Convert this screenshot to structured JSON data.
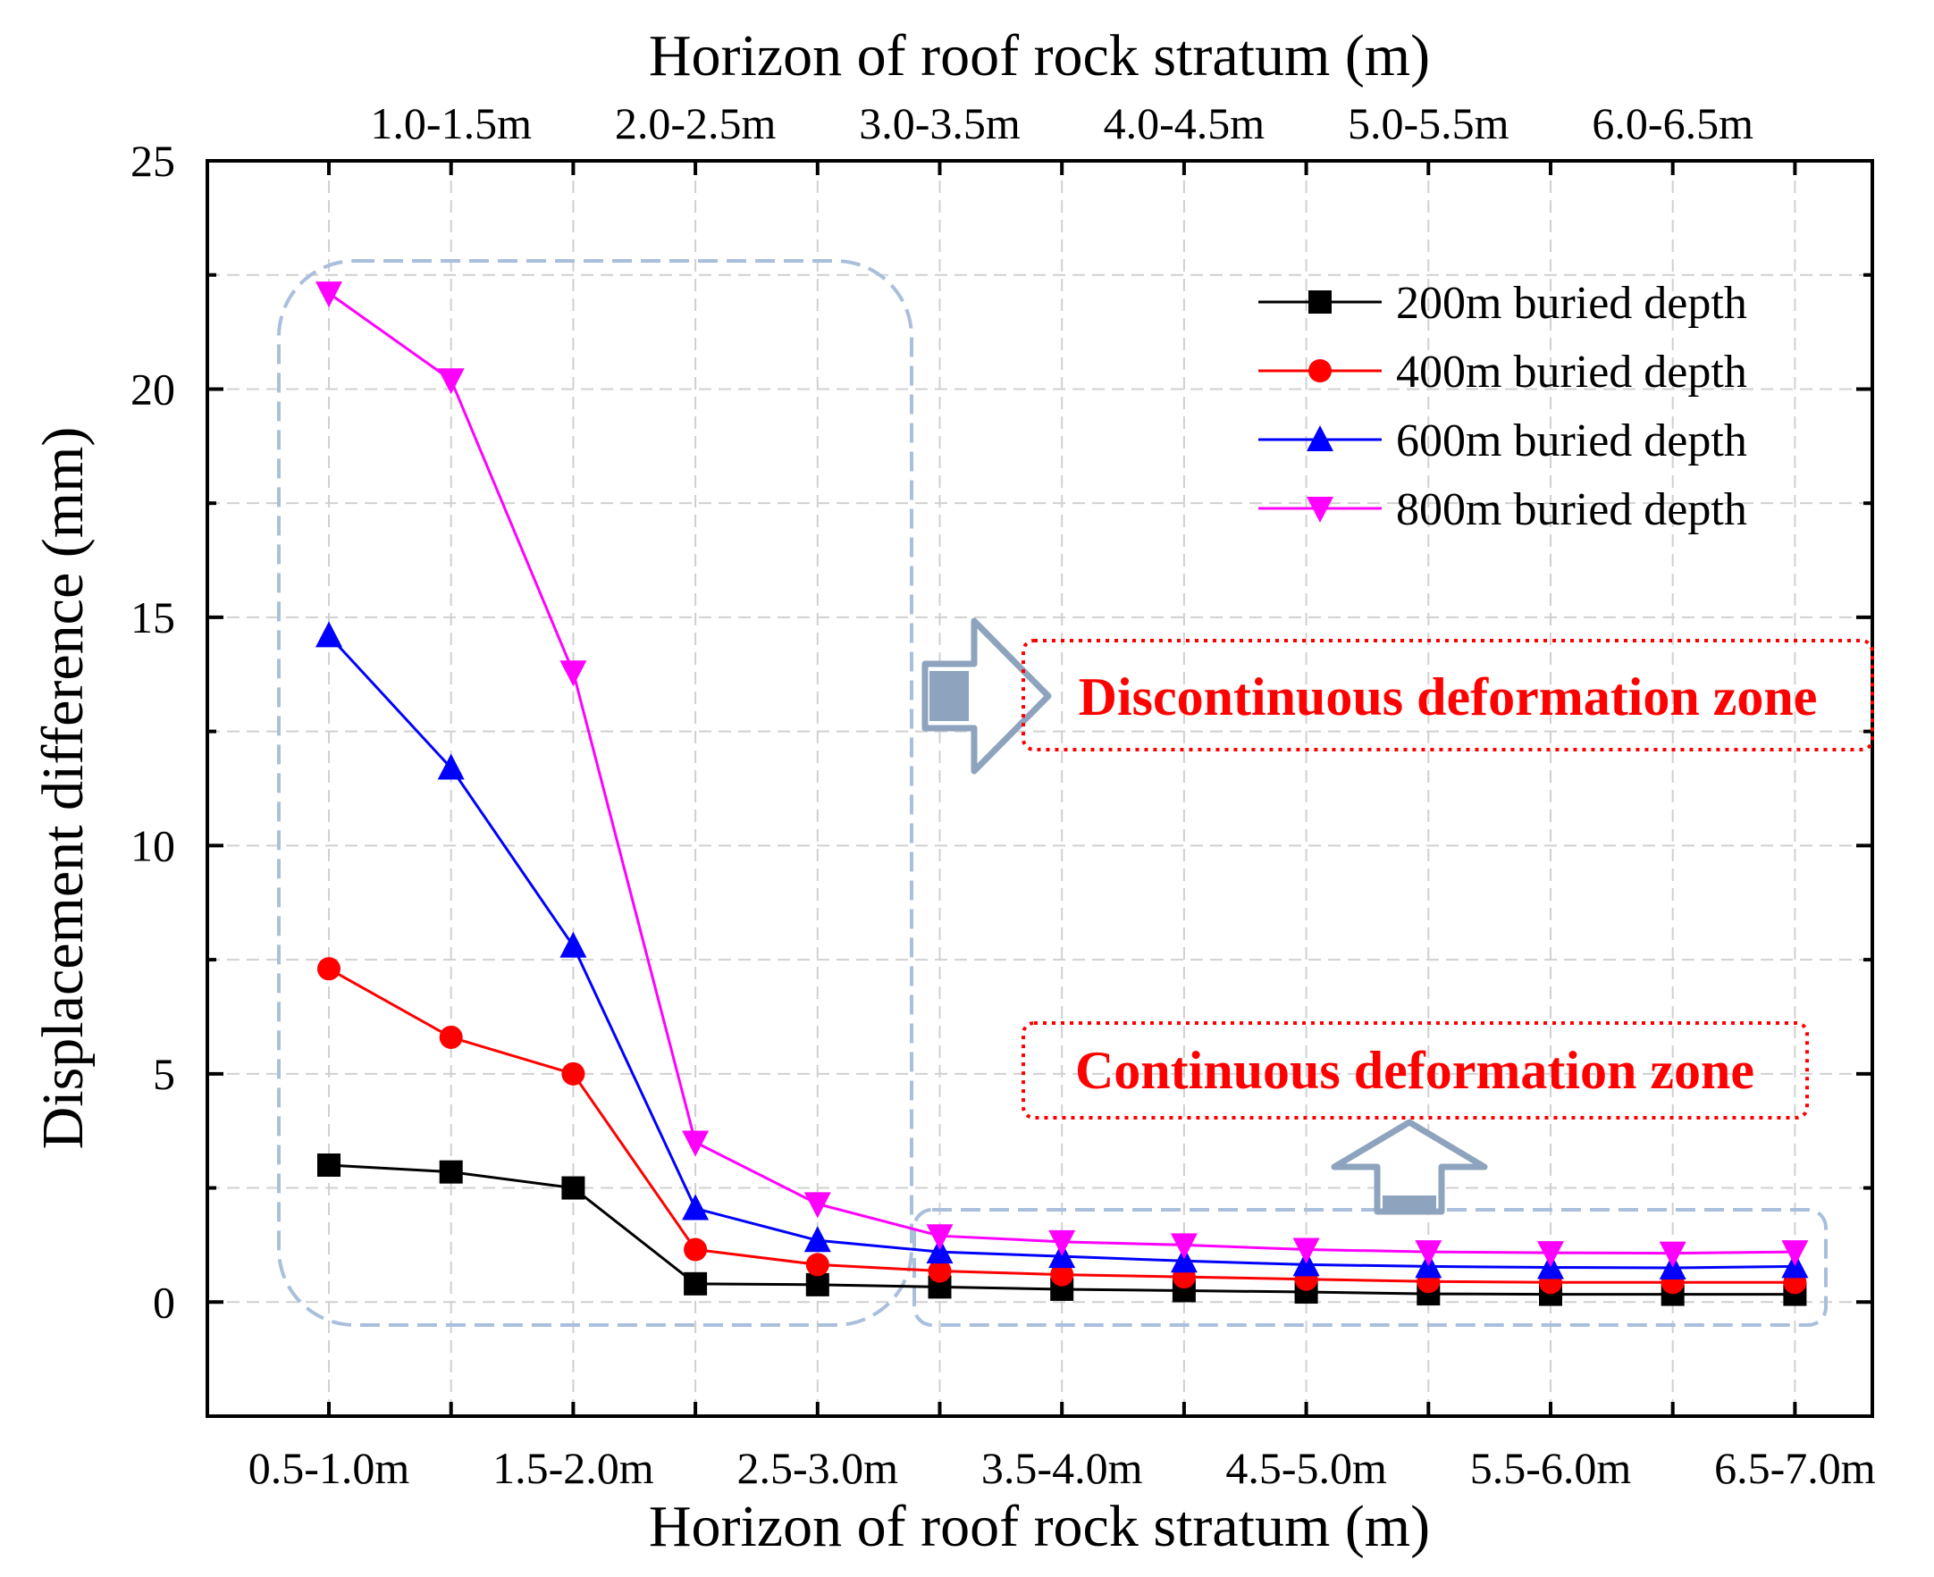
{
  "chart_data": {
    "type": "line",
    "x_top_label": "Horizon of roof rock stratum (m)",
    "x_bottom_label": "Horizon of roof rock stratum (m)",
    "ylabel": "Displacement difference (mm)",
    "ylim": [
      -2.5,
      25
    ],
    "yticks": [
      0,
      5,
      10,
      15,
      20,
      25
    ],
    "grid": true,
    "categories": [
      "0.5-1.0m",
      "1.0-1.5m",
      "1.5-2.0m",
      "2.0-2.5m",
      "2.5-3.0m",
      "3.0-3.5m",
      "3.5-4.0m",
      "4.0-4.5m",
      "4.5-5.0m",
      "5.0-5.5m",
      "5.5-6.0m",
      "6.0-6.5m",
      "6.5-7.0m"
    ],
    "bottom_tick_labels": [
      "0.5-1.0m",
      "1.5-2.0m",
      "2.5-3.0m",
      "3.5-4.0m",
      "4.5-5.0m",
      "5.5-6.0m",
      "6.5-7.0m"
    ],
    "top_tick_labels": [
      "1.0-1.5m",
      "2.0-2.5m",
      "3.0-3.5m",
      "4.0-4.5m",
      "5.0-5.5m",
      "6.0-6.5m"
    ],
    "legend_position": "top-right",
    "series": [
      {
        "name": "200m buried depth",
        "color": "#000000",
        "marker": "square",
        "values": [
          3.0,
          2.85,
          2.5,
          0.4,
          0.38,
          0.33,
          0.28,
          0.25,
          0.22,
          0.18,
          0.17,
          0.17,
          0.17
        ]
      },
      {
        "name": "400m buried depth",
        "color": "#ff0000",
        "marker": "circle",
        "values": [
          7.3,
          5.8,
          5.0,
          1.15,
          0.82,
          0.68,
          0.6,
          0.55,
          0.5,
          0.45,
          0.43,
          0.43,
          0.43
        ]
      },
      {
        "name": "600m buried depth",
        "color": "#0000ff",
        "marker": "triangle-up",
        "values": [
          14.6,
          11.7,
          7.8,
          2.05,
          1.35,
          1.1,
          1.0,
          0.9,
          0.82,
          0.78,
          0.76,
          0.75,
          0.78
        ]
      },
      {
        "name": "800m buried depth",
        "color": "#ff00ff",
        "marker": "triangle-down",
        "values": [
          22.1,
          20.2,
          13.8,
          3.5,
          2.15,
          1.45,
          1.32,
          1.25,
          1.15,
          1.1,
          1.08,
          1.07,
          1.1
        ]
      }
    ],
    "annotations": [
      {
        "name": "discontinuous-zone",
        "text": "Discontinuous deformation zone",
        "color": "#ff0000"
      },
      {
        "name": "continuous-zone",
        "text": "Continuous deformation zone",
        "color": "#ff0000"
      }
    ]
  }
}
